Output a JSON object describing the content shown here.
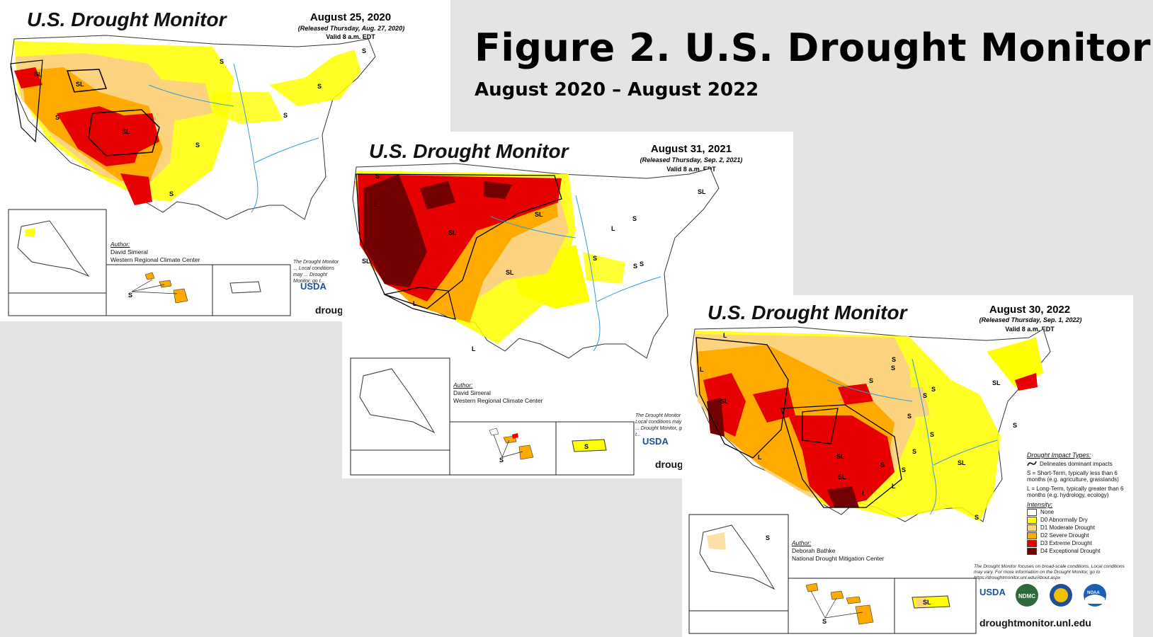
{
  "figure": {
    "title": "Figure 2. U.S. Drought Monitor",
    "subtitle": "August 2020 – August 2022"
  },
  "maps": [
    {
      "title": "U.S. Drought Monitor",
      "date": "August 25, 2020",
      "released": "(Released Thursday, Aug. 27, 2020)",
      "valid": "Valid 8 a.m. EDT",
      "author_label": "Author:",
      "author_name": "David Simeral",
      "author_org": "Western Regional Climate Center",
      "note": "The Drought Monitor ... Local conditions may ... Drought Monitor, go t...",
      "usda": "USDA",
      "url_partial": "droug",
      "impact_labels": [
        "SL",
        "SL",
        "S",
        "SL",
        "S",
        "S",
        "S",
        "S",
        "S",
        "S"
      ]
    },
    {
      "title": "U.S. Drought Monitor",
      "date": "August 31, 2021",
      "released": "(Released Thursday, Sep. 2, 2021)",
      "valid": "Valid 8 a.m. EDT",
      "author_label": "Author:",
      "author_name": "David Simeral",
      "author_org": "Western Regional Climate Center",
      "note": "The Drought Monitor ... Local conditions may ... Drought Monitor, go t...",
      "usda": "USDA",
      "url_partial": "droug",
      "impact_labels": [
        "S",
        "SL",
        "L",
        "SL",
        "L",
        "SL",
        "S",
        "L",
        "S",
        "SL",
        "SL",
        "S",
        "S",
        "L"
      ]
    },
    {
      "title": "U.S. Drought Monitor",
      "date": "August 30, 2022",
      "released": "(Released Thursday, Sep. 1, 2022)",
      "valid": "Valid 8 a.m. EDT",
      "author_label": "Author:",
      "author_name": "Deborah Bathke",
      "author_org": "National Drought Mitigation Center",
      "note": "The Drought Monitor focuses on broad-scale conditions. Local conditions may vary. For more information on the Drought Monitor, go to https://droughtmonitor.unl.edu/About.aspx",
      "usda": "USDA",
      "url": "droughtmonitor.unl.edu",
      "impact_labels": [
        "L",
        "L",
        "SL",
        "L",
        "S",
        "S",
        "S",
        "S",
        "SL",
        "S",
        "L",
        "SL",
        "S",
        "S",
        "SL",
        "S",
        "S",
        "S",
        "S",
        "SL",
        "L",
        "S"
      ]
    }
  ],
  "legend": {
    "impact_header": "Drought Impact Types:",
    "delineates": "Delineates dominant impacts",
    "s_desc": "S = Short-Term, typically less than 6 months (e.g. agriculture, grasslands)",
    "l_desc": "L = Long-Term, typically greater than 6 months (e.g. hydrology, ecology)",
    "intensity_header": "Intensity:",
    "categories": [
      {
        "label": "None",
        "color": "#ffffff"
      },
      {
        "label": "D0 Abnormally Dry",
        "color": "#ffff00"
      },
      {
        "label": "D1 Moderate Drought",
        "color": "#fcd37f"
      },
      {
        "label": "D2 Severe Drought",
        "color": "#ffaa00"
      },
      {
        "label": "D3 Extreme Drought",
        "color": "#e60000"
      },
      {
        "label": "D4 Exceptional Drought",
        "color": "#730000"
      }
    ]
  },
  "logos": [
    "USDA",
    "NDMC",
    "DOC",
    "NOAA"
  ]
}
